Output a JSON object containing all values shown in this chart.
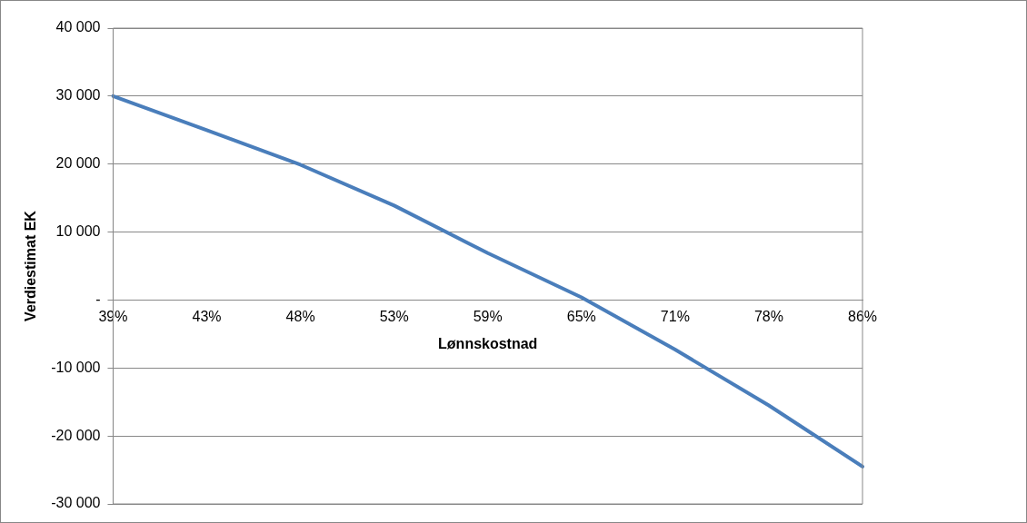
{
  "chart_data": {
    "type": "line",
    "xlabel": "Lønnskostnad",
    "ylabel": "Verdiestimat EK",
    "categories": [
      "39%",
      "43%",
      "48%",
      "53%",
      "59%",
      "65%",
      "71%",
      "78%",
      "86%"
    ],
    "series": [
      {
        "color": "#4a7ebb",
        "values": [
          30000,
          25000,
          19900,
          13900,
          6900,
          400,
          -7300,
          -15500,
          -24500
        ]
      }
    ],
    "ylim": [
      -30000,
      40000
    ],
    "yticks": [
      {
        "value": -30000,
        "label": "-30 000"
      },
      {
        "value": -20000,
        "label": "-20 000"
      },
      {
        "value": -10000,
        "label": "-10 000"
      },
      {
        "value": 0,
        "label": "-"
      },
      {
        "value": 10000,
        "label": "10 000"
      },
      {
        "value": 20000,
        "label": "20 000"
      },
      {
        "value": 30000,
        "label": "30 000"
      },
      {
        "value": 40000,
        "label": "40 000"
      }
    ],
    "grid": "y",
    "legend": false,
    "marker": "none",
    "line_style": "solid"
  }
}
